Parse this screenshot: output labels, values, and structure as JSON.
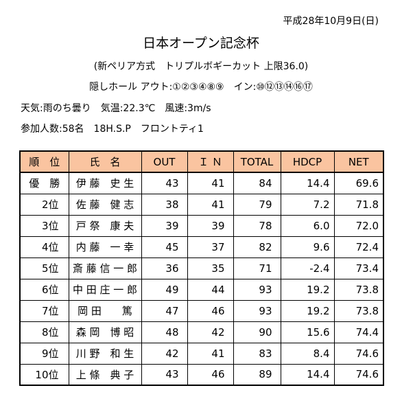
{
  "date": "平成28年10月9日(日)",
  "title": "日本オープン記念杯",
  "subtitle": "(新ペリア方式　トリプルボギーカット 上限36.0)",
  "hidden_holes": "隠しホール アウト:①②③④⑧⑨　イン:⑩⑫⑬⑭⑯⑰",
  "weather": "天気:雨のち曇り　気温:22.3℃　風速:3m/s",
  "participants": "参加人数:58名　18H.S.P　フロントティ1",
  "table": {
    "headers": [
      "順　位",
      "氏　名",
      "OUT",
      "Ｉ Ｎ",
      "TOTAL",
      "HDCP",
      "NET"
    ],
    "rows": [
      [
        "優　勝",
        "伊 藤　史 生",
        "43",
        "41",
        "84",
        "14.4",
        "69.6"
      ],
      [
        "2位",
        "佐 藤　健 志",
        "38",
        "41",
        "79",
        "7.2",
        "71.8"
      ],
      [
        "3位",
        "戸 祭　康 夫",
        "39",
        "39",
        "78",
        "6.0",
        "72.0"
      ],
      [
        "4位",
        "内 藤　一 幸",
        "45",
        "37",
        "82",
        "9.6",
        "72.4"
      ],
      [
        "5位",
        "斎 藤 信 一 郎",
        "36",
        "35",
        "71",
        "-2.4",
        "73.4"
      ],
      [
        "6位",
        "中 田 庄 一 郎",
        "49",
        "44",
        "93",
        "19.2",
        "73.8"
      ],
      [
        "7位",
        "岡 田　　篤",
        "47",
        "46",
        "93",
        "19.2",
        "73.8"
      ],
      [
        "8位",
        "森 岡　博 昭",
        "48",
        "42",
        "90",
        "15.6",
        "74.4"
      ],
      [
        "9位",
        "川 野　和 生",
        "42",
        "41",
        "83",
        "8.4",
        "74.6"
      ],
      [
        "10位",
        "上 條　典 子",
        "43",
        "46",
        "89",
        "14.4",
        "74.6"
      ]
    ]
  }
}
